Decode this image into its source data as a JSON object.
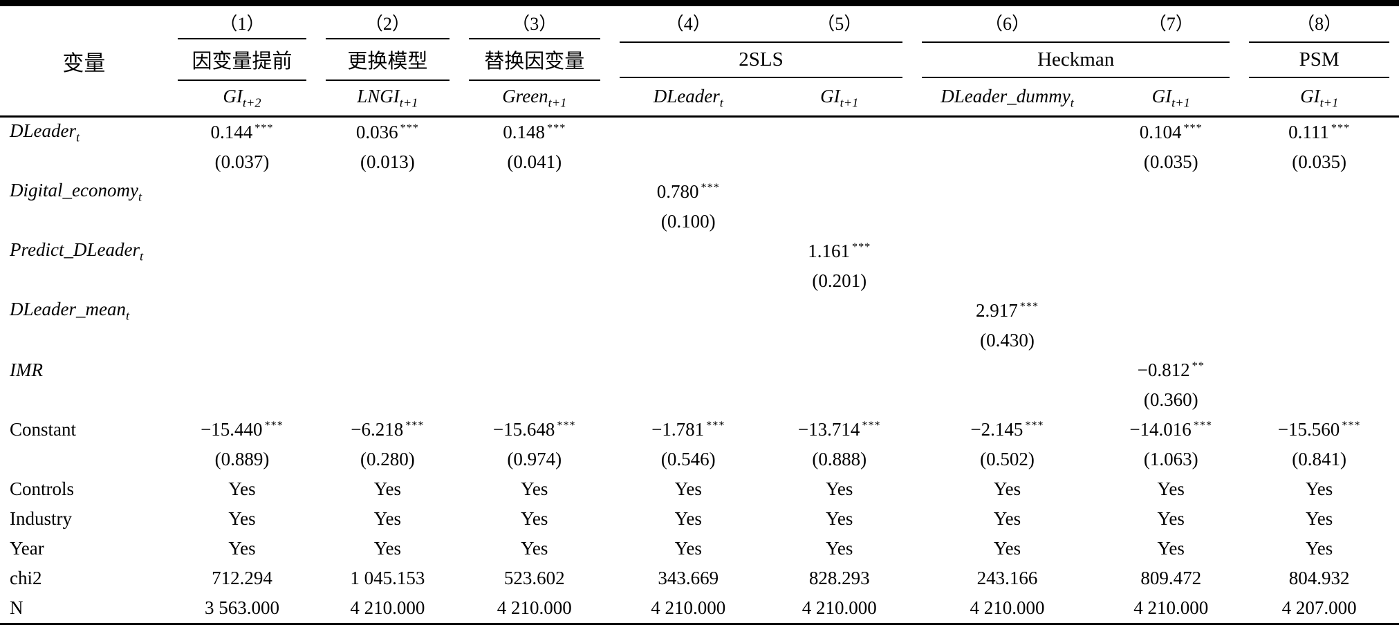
{
  "table": {
    "variable_header": "变量",
    "col_numbers": [
      "（1）",
      "（2）",
      "（3）",
      "（4）",
      "（5）",
      "（6）",
      "（7）",
      "（8）"
    ],
    "groups": [
      {
        "label": "因变量提前",
        "span": 1
      },
      {
        "label": "更换模型",
        "span": 1
      },
      {
        "label": "替换因变量",
        "span": 1
      },
      {
        "label": "2SLS",
        "span": 2
      },
      {
        "label": "Heckman",
        "span": 2
      },
      {
        "label": "PSM",
        "span": 1
      }
    ],
    "dep_vars": [
      {
        "base": "GI",
        "sub": "t+2"
      },
      {
        "base": "LNGI",
        "sub": "t+1"
      },
      {
        "base": "Green",
        "sub": "t+1"
      },
      {
        "base": "DLeader",
        "sub": "t"
      },
      {
        "base": "GI",
        "sub": "t+1"
      },
      {
        "base": "DLeader_dummy",
        "sub": "t"
      },
      {
        "base": "GI",
        "sub": "t+1"
      },
      {
        "base": "GI",
        "sub": "t+1"
      }
    ],
    "rows": [
      {
        "name": "row-dleader-coef",
        "label": {
          "base": "DLeader",
          "sub": "t",
          "italic": true
        },
        "cells": [
          {
            "t": "0.144",
            "sup": "***"
          },
          {
            "t": "0.036",
            "sup": "***"
          },
          {
            "t": "0.148",
            "sup": "***"
          },
          {
            "t": ""
          },
          {
            "t": ""
          },
          {
            "t": ""
          },
          {
            "t": "0.104",
            "sup": "***"
          },
          {
            "t": "0.111",
            "sup": "***"
          }
        ]
      },
      {
        "name": "row-dleader-se",
        "label": {
          "base": "",
          "sub": "",
          "italic": false
        },
        "cells": [
          {
            "t": "(0.037)"
          },
          {
            "t": "(0.013)"
          },
          {
            "t": "(0.041)"
          },
          {
            "t": ""
          },
          {
            "t": ""
          },
          {
            "t": ""
          },
          {
            "t": "(0.035)"
          },
          {
            "t": "(0.035)"
          }
        ]
      },
      {
        "name": "row-digital-economy-coef",
        "label": {
          "base": "Digital_economy",
          "sub": "t",
          "italic": true
        },
        "cells": [
          {
            "t": ""
          },
          {
            "t": ""
          },
          {
            "t": ""
          },
          {
            "t": "0.780",
            "sup": "***"
          },
          {
            "t": ""
          },
          {
            "t": ""
          },
          {
            "t": ""
          },
          {
            "t": ""
          }
        ]
      },
      {
        "name": "row-digital-economy-se",
        "label": {
          "base": "",
          "sub": "",
          "italic": false
        },
        "cells": [
          {
            "t": ""
          },
          {
            "t": ""
          },
          {
            "t": ""
          },
          {
            "t": "(0.100)"
          },
          {
            "t": ""
          },
          {
            "t": ""
          },
          {
            "t": ""
          },
          {
            "t": ""
          }
        ]
      },
      {
        "name": "row-predict-dleader-coef",
        "label": {
          "base": "Predict_DLeader",
          "sub": "t",
          "italic": true
        },
        "cells": [
          {
            "t": ""
          },
          {
            "t": ""
          },
          {
            "t": ""
          },
          {
            "t": ""
          },
          {
            "t": "1.161",
            "sup": "***"
          },
          {
            "t": ""
          },
          {
            "t": ""
          },
          {
            "t": ""
          }
        ]
      },
      {
        "name": "row-predict-dleader-se",
        "label": {
          "base": "",
          "sub": "",
          "italic": false
        },
        "cells": [
          {
            "t": ""
          },
          {
            "t": ""
          },
          {
            "t": ""
          },
          {
            "t": ""
          },
          {
            "t": "(0.201)"
          },
          {
            "t": ""
          },
          {
            "t": ""
          },
          {
            "t": ""
          }
        ]
      },
      {
        "name": "row-dleader-mean-coef",
        "label": {
          "base": "DLeader_mean",
          "sub": "t",
          "italic": true
        },
        "cells": [
          {
            "t": ""
          },
          {
            "t": ""
          },
          {
            "t": ""
          },
          {
            "t": ""
          },
          {
            "t": ""
          },
          {
            "t": "2.917",
            "sup": "***"
          },
          {
            "t": ""
          },
          {
            "t": ""
          }
        ]
      },
      {
        "name": "row-dleader-mean-se",
        "label": {
          "base": "",
          "sub": "",
          "italic": false
        },
        "cells": [
          {
            "t": ""
          },
          {
            "t": ""
          },
          {
            "t": ""
          },
          {
            "t": ""
          },
          {
            "t": ""
          },
          {
            "t": "(0.430)"
          },
          {
            "t": ""
          },
          {
            "t": ""
          }
        ]
      },
      {
        "name": "row-imr-coef",
        "label": {
          "base": "IMR",
          "sub": "",
          "italic": true
        },
        "cells": [
          {
            "t": ""
          },
          {
            "t": ""
          },
          {
            "t": ""
          },
          {
            "t": ""
          },
          {
            "t": ""
          },
          {
            "t": ""
          },
          {
            "t": "−0.812",
            "sup": "**"
          },
          {
            "t": ""
          }
        ]
      },
      {
        "name": "row-imr-se",
        "label": {
          "base": "",
          "sub": "",
          "italic": false
        },
        "cells": [
          {
            "t": ""
          },
          {
            "t": ""
          },
          {
            "t": ""
          },
          {
            "t": ""
          },
          {
            "t": ""
          },
          {
            "t": ""
          },
          {
            "t": "(0.360)"
          },
          {
            "t": ""
          }
        ]
      },
      {
        "name": "row-constant-coef",
        "label": {
          "base": "Constant",
          "sub": "",
          "italic": false
        },
        "cells": [
          {
            "t": "−15.440",
            "sup": "***"
          },
          {
            "t": "−6.218",
            "sup": "***"
          },
          {
            "t": "−15.648",
            "sup": "***"
          },
          {
            "t": "−1.781",
            "sup": "***"
          },
          {
            "t": "−13.714",
            "sup": "***"
          },
          {
            "t": "−2.145",
            "sup": "***"
          },
          {
            "t": "−14.016",
            "sup": "***"
          },
          {
            "t": "−15.560",
            "sup": "***"
          }
        ]
      },
      {
        "name": "row-constant-se",
        "label": {
          "base": "",
          "sub": "",
          "italic": false
        },
        "cells": [
          {
            "t": "(0.889)"
          },
          {
            "t": "(0.280)"
          },
          {
            "t": "(0.974)"
          },
          {
            "t": "(0.546)"
          },
          {
            "t": "(0.888)"
          },
          {
            "t": "(0.502)"
          },
          {
            "t": "(1.063)"
          },
          {
            "t": "(0.841)"
          }
        ]
      },
      {
        "name": "row-controls",
        "label": {
          "base": "Controls",
          "sub": "",
          "italic": false
        },
        "cells": [
          {
            "t": "Yes"
          },
          {
            "t": "Yes"
          },
          {
            "t": "Yes"
          },
          {
            "t": "Yes"
          },
          {
            "t": "Yes"
          },
          {
            "t": "Yes"
          },
          {
            "t": "Yes"
          },
          {
            "t": "Yes"
          }
        ]
      },
      {
        "name": "row-industry",
        "label": {
          "base": "Industry",
          "sub": "",
          "italic": false
        },
        "cells": [
          {
            "t": "Yes"
          },
          {
            "t": "Yes"
          },
          {
            "t": "Yes"
          },
          {
            "t": "Yes"
          },
          {
            "t": "Yes"
          },
          {
            "t": "Yes"
          },
          {
            "t": "Yes"
          },
          {
            "t": "Yes"
          }
        ]
      },
      {
        "name": "row-year",
        "label": {
          "base": "Year",
          "sub": "",
          "italic": false
        },
        "cells": [
          {
            "t": "Yes"
          },
          {
            "t": "Yes"
          },
          {
            "t": "Yes"
          },
          {
            "t": "Yes"
          },
          {
            "t": "Yes"
          },
          {
            "t": "Yes"
          },
          {
            "t": "Yes"
          },
          {
            "t": "Yes"
          }
        ]
      },
      {
        "name": "row-chi2",
        "label": {
          "base": "chi2",
          "sub": "",
          "italic": false
        },
        "cells": [
          {
            "t": "712.294"
          },
          {
            "t": "1 045.153"
          },
          {
            "t": "523.602"
          },
          {
            "t": "343.669"
          },
          {
            "t": "828.293"
          },
          {
            "t": "243.166"
          },
          {
            "t": "809.472"
          },
          {
            "t": "804.932"
          }
        ]
      },
      {
        "name": "row-n",
        "label": {
          "base": "N",
          "sub": "",
          "italic": false
        },
        "cells": [
          {
            "t": "3 563.000"
          },
          {
            "t": "4 210.000"
          },
          {
            "t": "4 210.000"
          },
          {
            "t": "4 210.000"
          },
          {
            "t": "4 210.000"
          },
          {
            "t": "4 210.000"
          },
          {
            "t": "4 210.000"
          },
          {
            "t": "4 207.000"
          }
        ]
      }
    ]
  }
}
